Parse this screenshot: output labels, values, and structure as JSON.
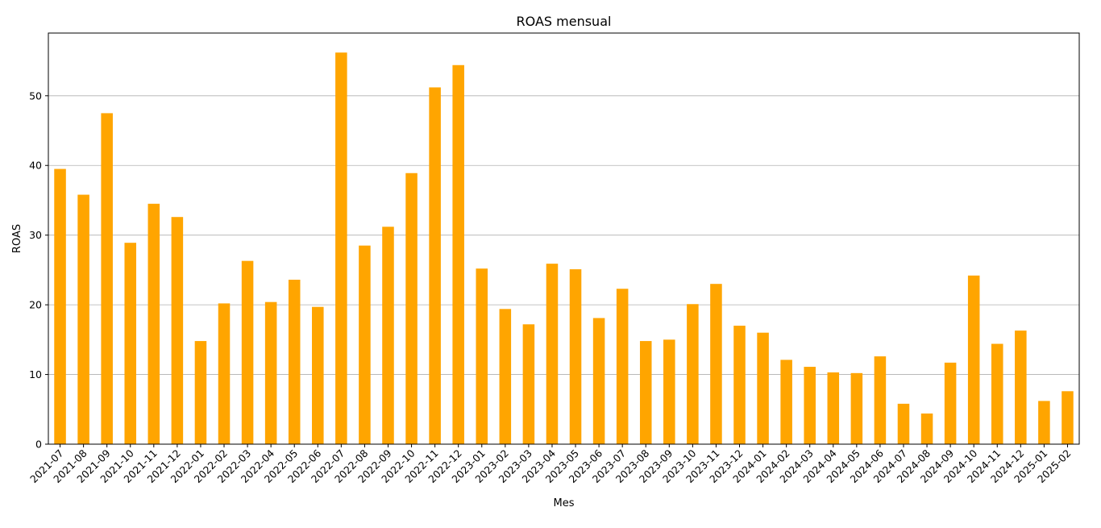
{
  "chart_data": {
    "type": "bar",
    "title": "ROAS mensual",
    "xlabel": "Mes",
    "ylabel": "ROAS",
    "ylim": [
      0,
      59
    ],
    "yticks": [
      0,
      10,
      20,
      30,
      40,
      50
    ],
    "grid": "y",
    "bar_color": "#ffa500",
    "categories": [
      "2021-07",
      "2021-08",
      "2021-09",
      "2021-10",
      "2021-11",
      "2021-12",
      "2022-01",
      "2022-02",
      "2022-03",
      "2022-04",
      "2022-05",
      "2022-06",
      "2022-07",
      "2022-08",
      "2022-09",
      "2022-10",
      "2022-11",
      "2022-12",
      "2023-01",
      "2023-02",
      "2023-03",
      "2023-04",
      "2023-05",
      "2023-06",
      "2023-07",
      "2023-08",
      "2023-09",
      "2023-10",
      "2023-11",
      "2023-12",
      "2024-01",
      "2024-02",
      "2024-03",
      "2024-04",
      "2024-05",
      "2024-06",
      "2024-07",
      "2024-08",
      "2024-09",
      "2024-10",
      "2024-11",
      "2024-12",
      "2025-01",
      "2025-02"
    ],
    "values": [
      39.5,
      35.8,
      47.5,
      28.9,
      34.5,
      32.6,
      14.8,
      20.2,
      26.3,
      20.4,
      23.6,
      19.7,
      56.2,
      28.5,
      31.2,
      38.9,
      51.2,
      54.4,
      25.2,
      19.4,
      17.2,
      25.9,
      25.1,
      18.1,
      22.3,
      14.8,
      15.0,
      20.1,
      23.0,
      17.0,
      16.0,
      12.1,
      11.1,
      10.3,
      10.2,
      12.6,
      5.8,
      4.4,
      11.7,
      24.2,
      14.4,
      16.3,
      6.2,
      7.6
    ]
  }
}
